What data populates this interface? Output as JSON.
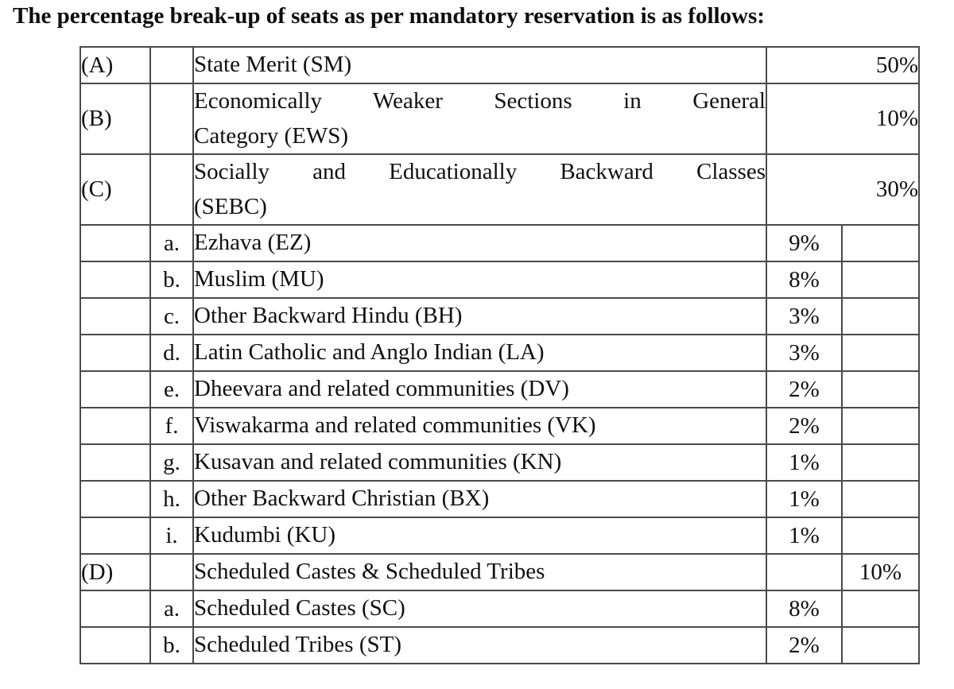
{
  "title": {
    "text": "The percentage break-up of seats as per mandatory reservation is as follows:"
  },
  "table": {
    "rows": [
      {
        "cat": "(A)",
        "sub": "",
        "desc": [
          "State Merit (SM)"
        ],
        "sub_pct": "",
        "main_pct": "50%",
        "merged_pct_cell": true
      },
      {
        "cat": "(B)",
        "sub": "",
        "desc": [
          "Economically Weaker Sections in General",
          "Category (EWS)"
        ],
        "sub_pct": "",
        "main_pct": "10%",
        "merged_pct_cell": true
      },
      {
        "cat": "(C)",
        "sub": "",
        "desc": [
          "Socially and Educationally Backward Classes",
          "(SEBC)"
        ],
        "sub_pct": "",
        "main_pct": "30%",
        "merged_pct_cell": true
      },
      {
        "cat": "",
        "sub": "a.",
        "desc": [
          "Ezhava (EZ)"
        ],
        "sub_pct": "9%",
        "main_pct": "",
        "merged_pct_cell": false
      },
      {
        "cat": "",
        "sub": "b.",
        "desc": [
          "Muslim (MU)"
        ],
        "sub_pct": "8%",
        "main_pct": "",
        "merged_pct_cell": false
      },
      {
        "cat": "",
        "sub": "c.",
        "desc": [
          "Other Backward Hindu (BH)"
        ],
        "sub_pct": "3%",
        "main_pct": "",
        "merged_pct_cell": false
      },
      {
        "cat": "",
        "sub": "d.",
        "desc": [
          "Latin Catholic and Anglo Indian (LA)"
        ],
        "sub_pct": "3%",
        "main_pct": "",
        "merged_pct_cell": false
      },
      {
        "cat": "",
        "sub": "e.",
        "desc": [
          "Dheevara and related communities (DV)"
        ],
        "sub_pct": "2%",
        "main_pct": "",
        "merged_pct_cell": false
      },
      {
        "cat": "",
        "sub": "f.",
        "desc": [
          "Viswakarma and related communities (VK)"
        ],
        "sub_pct": "2%",
        "main_pct": "",
        "merged_pct_cell": false
      },
      {
        "cat": "",
        "sub": "g.",
        "desc": [
          "Kusavan and related communities (KN)"
        ],
        "sub_pct": "1%",
        "main_pct": "",
        "merged_pct_cell": false
      },
      {
        "cat": "",
        "sub": "h.",
        "desc": [
          "Other Backward Christian (BX)"
        ],
        "sub_pct": "1%",
        "main_pct": "",
        "merged_pct_cell": false
      },
      {
        "cat": "",
        "sub": "i.",
        "desc": [
          "Kudumbi (KU)"
        ],
        "sub_pct": "1%",
        "main_pct": "",
        "merged_pct_cell": false
      },
      {
        "cat": "(D)",
        "sub": "",
        "desc": [
          "Scheduled Castes &amp; Scheduled Tribes"
        ],
        "plain_desc": "Scheduled Castes & Scheduled Tribes",
        "sub_pct": "",
        "main_pct": "10%",
        "merged_pct_cell": false
      },
      {
        "cat": "",
        "sub": "a.",
        "desc": [
          "Scheduled Castes (SC)"
        ],
        "sub_pct": "8%",
        "main_pct": "",
        "merged_pct_cell": false
      },
      {
        "cat": "",
        "sub": "b.",
        "desc": [
          "Scheduled Tribes (ST)"
        ],
        "sub_pct": "2%",
        "main_pct": "",
        "merged_pct_cell": false
      }
    ]
  }
}
